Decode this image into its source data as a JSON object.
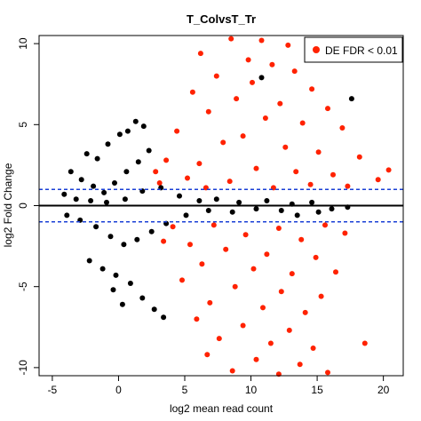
{
  "chart_data": {
    "type": "scatter",
    "title": "T_ColvsT_Tr",
    "xlabel": "log2 mean read count",
    "ylabel": "log2 Fold Change",
    "xlim": [
      -6,
      21.5
    ],
    "ylim": [
      -10.5,
      10.5
    ],
    "x_ticks": [
      -5,
      0,
      5,
      10,
      15,
      20
    ],
    "y_ticks": [
      -10,
      -5,
      0,
      5,
      10
    ],
    "x_tick_labels": [
      "-5",
      "0",
      "5",
      "10",
      "15",
      "20"
    ],
    "y_tick_labels": [
      "-10",
      "-5",
      "0",
      "5",
      "10"
    ],
    "grid": false,
    "legend_position": "top-right",
    "legend": {
      "label": "DE FDR <  0.01",
      "color": "#ff2200"
    },
    "reference_lines": [
      {
        "y": 0,
        "style": "solid",
        "color": "#000000"
      },
      {
        "y": 1,
        "style": "dashed",
        "color": "#1a3fd6"
      },
      {
        "y": -1,
        "style": "dashed",
        "color": "#1a3fd6"
      }
    ],
    "series": [
      {
        "name": "DE FDR <  0.01",
        "color": "#ff2200",
        "points": [
          [
            8.5,
            10.3
          ],
          [
            10.8,
            10.2
          ],
          [
            12.8,
            9.9
          ],
          [
            6.2,
            9.4
          ],
          [
            9.8,
            9.0
          ],
          [
            11.6,
            8.7
          ],
          [
            13.3,
            8.3
          ],
          [
            7.4,
            8.0
          ],
          [
            10.1,
            7.6
          ],
          [
            14.6,
            7.2
          ],
          [
            5.6,
            7.0
          ],
          [
            8.9,
            6.6
          ],
          [
            12.2,
            6.3
          ],
          [
            15.8,
            6.0
          ],
          [
            6.8,
            5.8
          ],
          [
            11.1,
            5.4
          ],
          [
            13.9,
            5.1
          ],
          [
            16.9,
            4.8
          ],
          [
            4.4,
            4.6
          ],
          [
            9.4,
            4.3
          ],
          [
            7.9,
            3.9
          ],
          [
            12.6,
            3.6
          ],
          [
            15.1,
            3.3
          ],
          [
            18.2,
            3.0
          ],
          [
            3.6,
            2.8
          ],
          [
            6.1,
            2.6
          ],
          [
            10.4,
            2.3
          ],
          [
            13.4,
            2.1
          ],
          [
            16.2,
            1.9
          ],
          [
            20.4,
            2.2
          ],
          [
            19.6,
            1.6
          ],
          [
            5.2,
            1.7
          ],
          [
            8.4,
            1.5
          ],
          [
            14.5,
            1.3
          ],
          [
            17.3,
            1.2
          ],
          [
            3.1,
            1.4
          ],
          [
            6.6,
            1.1
          ],
          [
            11.7,
            1.1
          ],
          [
            4.1,
            -1.3
          ],
          [
            7.2,
            -1.2
          ],
          [
            12.1,
            -1.4
          ],
          [
            15.6,
            -1.2
          ],
          [
            9.6,
            -1.8
          ],
          [
            13.8,
            -2.1
          ],
          [
            17.1,
            -1.7
          ],
          [
            5.4,
            -2.4
          ],
          [
            8.1,
            -2.7
          ],
          [
            11.2,
            -3.0
          ],
          [
            14.9,
            -3.2
          ],
          [
            6.3,
            -3.6
          ],
          [
            10.2,
            -3.9
          ],
          [
            13.1,
            -4.2
          ],
          [
            16.4,
            -4.1
          ],
          [
            4.8,
            -4.6
          ],
          [
            8.8,
            -5.0
          ],
          [
            12.3,
            -5.3
          ],
          [
            15.3,
            -5.6
          ],
          [
            6.9,
            -6.0
          ],
          [
            10.9,
            -6.3
          ],
          [
            14.1,
            -6.6
          ],
          [
            5.9,
            -7.0
          ],
          [
            9.4,
            -7.4
          ],
          [
            12.9,
            -7.7
          ],
          [
            7.6,
            -8.2
          ],
          [
            11.5,
            -8.5
          ],
          [
            14.7,
            -8.8
          ],
          [
            6.7,
            -9.2
          ],
          [
            10.4,
            -9.5
          ],
          [
            13.7,
            -9.8
          ],
          [
            8.6,
            -10.2
          ],
          [
            12.1,
            -10.4
          ],
          [
            15.8,
            -10.3
          ],
          [
            18.6,
            -8.5
          ],
          [
            2.8,
            2.1
          ],
          [
            3.4,
            -2.2
          ]
        ]
      },
      {
        "name": "",
        "color": "#000000",
        "points": [
          [
            -2.4,
            3.2
          ],
          [
            -1.6,
            2.9
          ],
          [
            -0.8,
            3.8
          ],
          [
            0.1,
            4.4
          ],
          [
            0.7,
            4.6
          ],
          [
            1.3,
            5.2
          ],
          [
            1.9,
            4.9
          ],
          [
            -3.6,
            2.1
          ],
          [
            -2.8,
            1.6
          ],
          [
            -1.9,
            1.2
          ],
          [
            -1.1,
            0.8
          ],
          [
            -0.3,
            1.4
          ],
          [
            0.6,
            2.1
          ],
          [
            1.5,
            2.7
          ],
          [
            2.3,
            3.4
          ],
          [
            -4.1,
            0.7
          ],
          [
            -3.2,
            0.4
          ],
          [
            -2.1,
            0.3
          ],
          [
            -0.9,
            0.2
          ],
          [
            0.5,
            0.4
          ],
          [
            1.8,
            0.9
          ],
          [
            3.2,
            1.1
          ],
          [
            4.6,
            0.6
          ],
          [
            6.1,
            0.3
          ],
          [
            7.4,
            0.4
          ],
          [
            9.1,
            0.2
          ],
          [
            11.2,
            0.3
          ],
          [
            13.1,
            0.1
          ],
          [
            14.6,
            0.2
          ],
          [
            16.1,
            -0.2
          ],
          [
            17.3,
            -0.1
          ],
          [
            -3.9,
            -0.6
          ],
          [
            -2.9,
            -0.9
          ],
          [
            -1.7,
            -1.3
          ],
          [
            -0.6,
            -1.9
          ],
          [
            0.4,
            -2.4
          ],
          [
            1.4,
            -2.1
          ],
          [
            2.5,
            -1.6
          ],
          [
            3.6,
            -1.1
          ],
          [
            5.1,
            -0.6
          ],
          [
            6.8,
            -0.3
          ],
          [
            8.6,
            -0.4
          ],
          [
            10.4,
            -0.2
          ],
          [
            12.3,
            -0.3
          ],
          [
            15.1,
            -0.4
          ],
          [
            -2.2,
            -3.4
          ],
          [
            -1.2,
            -3.9
          ],
          [
            -0.2,
            -4.3
          ],
          [
            0.9,
            -4.8
          ],
          [
            1.8,
            -5.7
          ],
          [
            2.7,
            -6.4
          ],
          [
            3.4,
            -6.9
          ],
          [
            -0.4,
            -5.2
          ],
          [
            0.3,
            -6.1
          ],
          [
            17.6,
            6.6
          ],
          [
            10.8,
            7.9
          ],
          [
            13.5,
            -0.6
          ]
        ]
      }
    ]
  }
}
